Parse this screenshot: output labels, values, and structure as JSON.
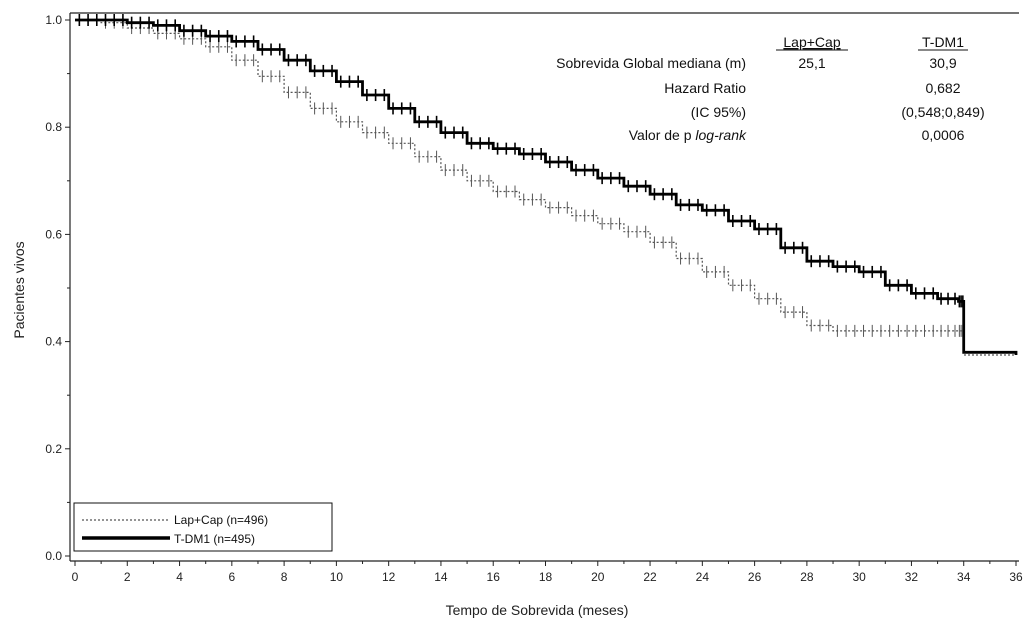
{
  "chart_data": {
    "type": "line",
    "subtype": "kaplan-meier",
    "title": "",
    "xlabel": "Tempo de Sobrevida (meses)",
    "ylabel": "Pacientes vivos",
    "xlim": [
      0,
      36
    ],
    "ylim": [
      0,
      1.0
    ],
    "xticks": [
      "0",
      "2",
      "4",
      "6",
      "8",
      "10",
      "12",
      "14",
      "16",
      "18",
      "20",
      "22",
      "24",
      "26",
      "28",
      "30",
      "32",
      "34",
      "36"
    ],
    "yticks": [
      "0.0",
      "0.2",
      "0.4",
      "0.6",
      "0.8",
      "1.0"
    ],
    "grid": false,
    "legend_position": "bottom-left",
    "legend": [
      {
        "label": "Lap+Cap (n=496)",
        "style": "dotted"
      },
      {
        "label": "T-DM1 (n=495)",
        "style": "solid-thick"
      }
    ],
    "stats_table": {
      "col_headers": [
        "Lap+Cap",
        "T-DM1"
      ],
      "rows": [
        {
          "label": "Sobrevida Global mediana (m)",
          "values": [
            "25,1",
            "30,9"
          ]
        },
        {
          "label": "Hazard Ratio",
          "values": [
            "",
            "0,682"
          ]
        },
        {
          "label": "(IC 95%)",
          "values": [
            "",
            "(0,548;0,849)"
          ]
        },
        {
          "label_prefix": "Valor de p ",
          "label_italic": "log-rank",
          "values": [
            "",
            "0,0006"
          ]
        }
      ]
    },
    "series": [
      {
        "name": "Lap+Cap",
        "color": "#555555",
        "x": [
          0,
          1,
          2,
          3,
          4,
          5,
          6,
          7,
          8,
          9,
          10,
          11,
          12,
          13,
          14,
          15,
          16,
          17,
          18,
          19,
          20,
          21,
          22,
          23,
          24,
          25,
          26,
          27,
          28,
          29,
          30,
          31,
          32,
          33,
          33.8,
          34,
          36
        ],
        "y": [
          1.0,
          0.995,
          0.985,
          0.975,
          0.965,
          0.95,
          0.925,
          0.895,
          0.865,
          0.835,
          0.81,
          0.79,
          0.77,
          0.745,
          0.72,
          0.7,
          0.68,
          0.665,
          0.65,
          0.635,
          0.62,
          0.605,
          0.585,
          0.555,
          0.53,
          0.505,
          0.48,
          0.455,
          0.43,
          0.42,
          0.42,
          0.42,
          0.42,
          0.42,
          0.42,
          0.375,
          0.375
        ]
      },
      {
        "name": "T-DM1",
        "color": "#000000",
        "x": [
          0,
          1,
          2,
          3,
          4,
          5,
          6,
          7,
          8,
          9,
          10,
          11,
          12,
          13,
          14,
          15,
          16,
          17,
          18,
          19,
          20,
          21,
          22,
          23,
          24,
          25,
          26,
          27,
          28,
          29,
          30,
          31,
          32,
          33,
          33.8,
          34,
          36
        ],
        "y": [
          1.0,
          1.0,
          0.995,
          0.99,
          0.98,
          0.97,
          0.96,
          0.945,
          0.925,
          0.905,
          0.885,
          0.86,
          0.835,
          0.81,
          0.79,
          0.77,
          0.76,
          0.75,
          0.735,
          0.72,
          0.705,
          0.69,
          0.675,
          0.655,
          0.645,
          0.625,
          0.61,
          0.575,
          0.55,
          0.54,
          0.53,
          0.505,
          0.49,
          0.48,
          0.475,
          0.38,
          0.375
        ]
      }
    ]
  }
}
